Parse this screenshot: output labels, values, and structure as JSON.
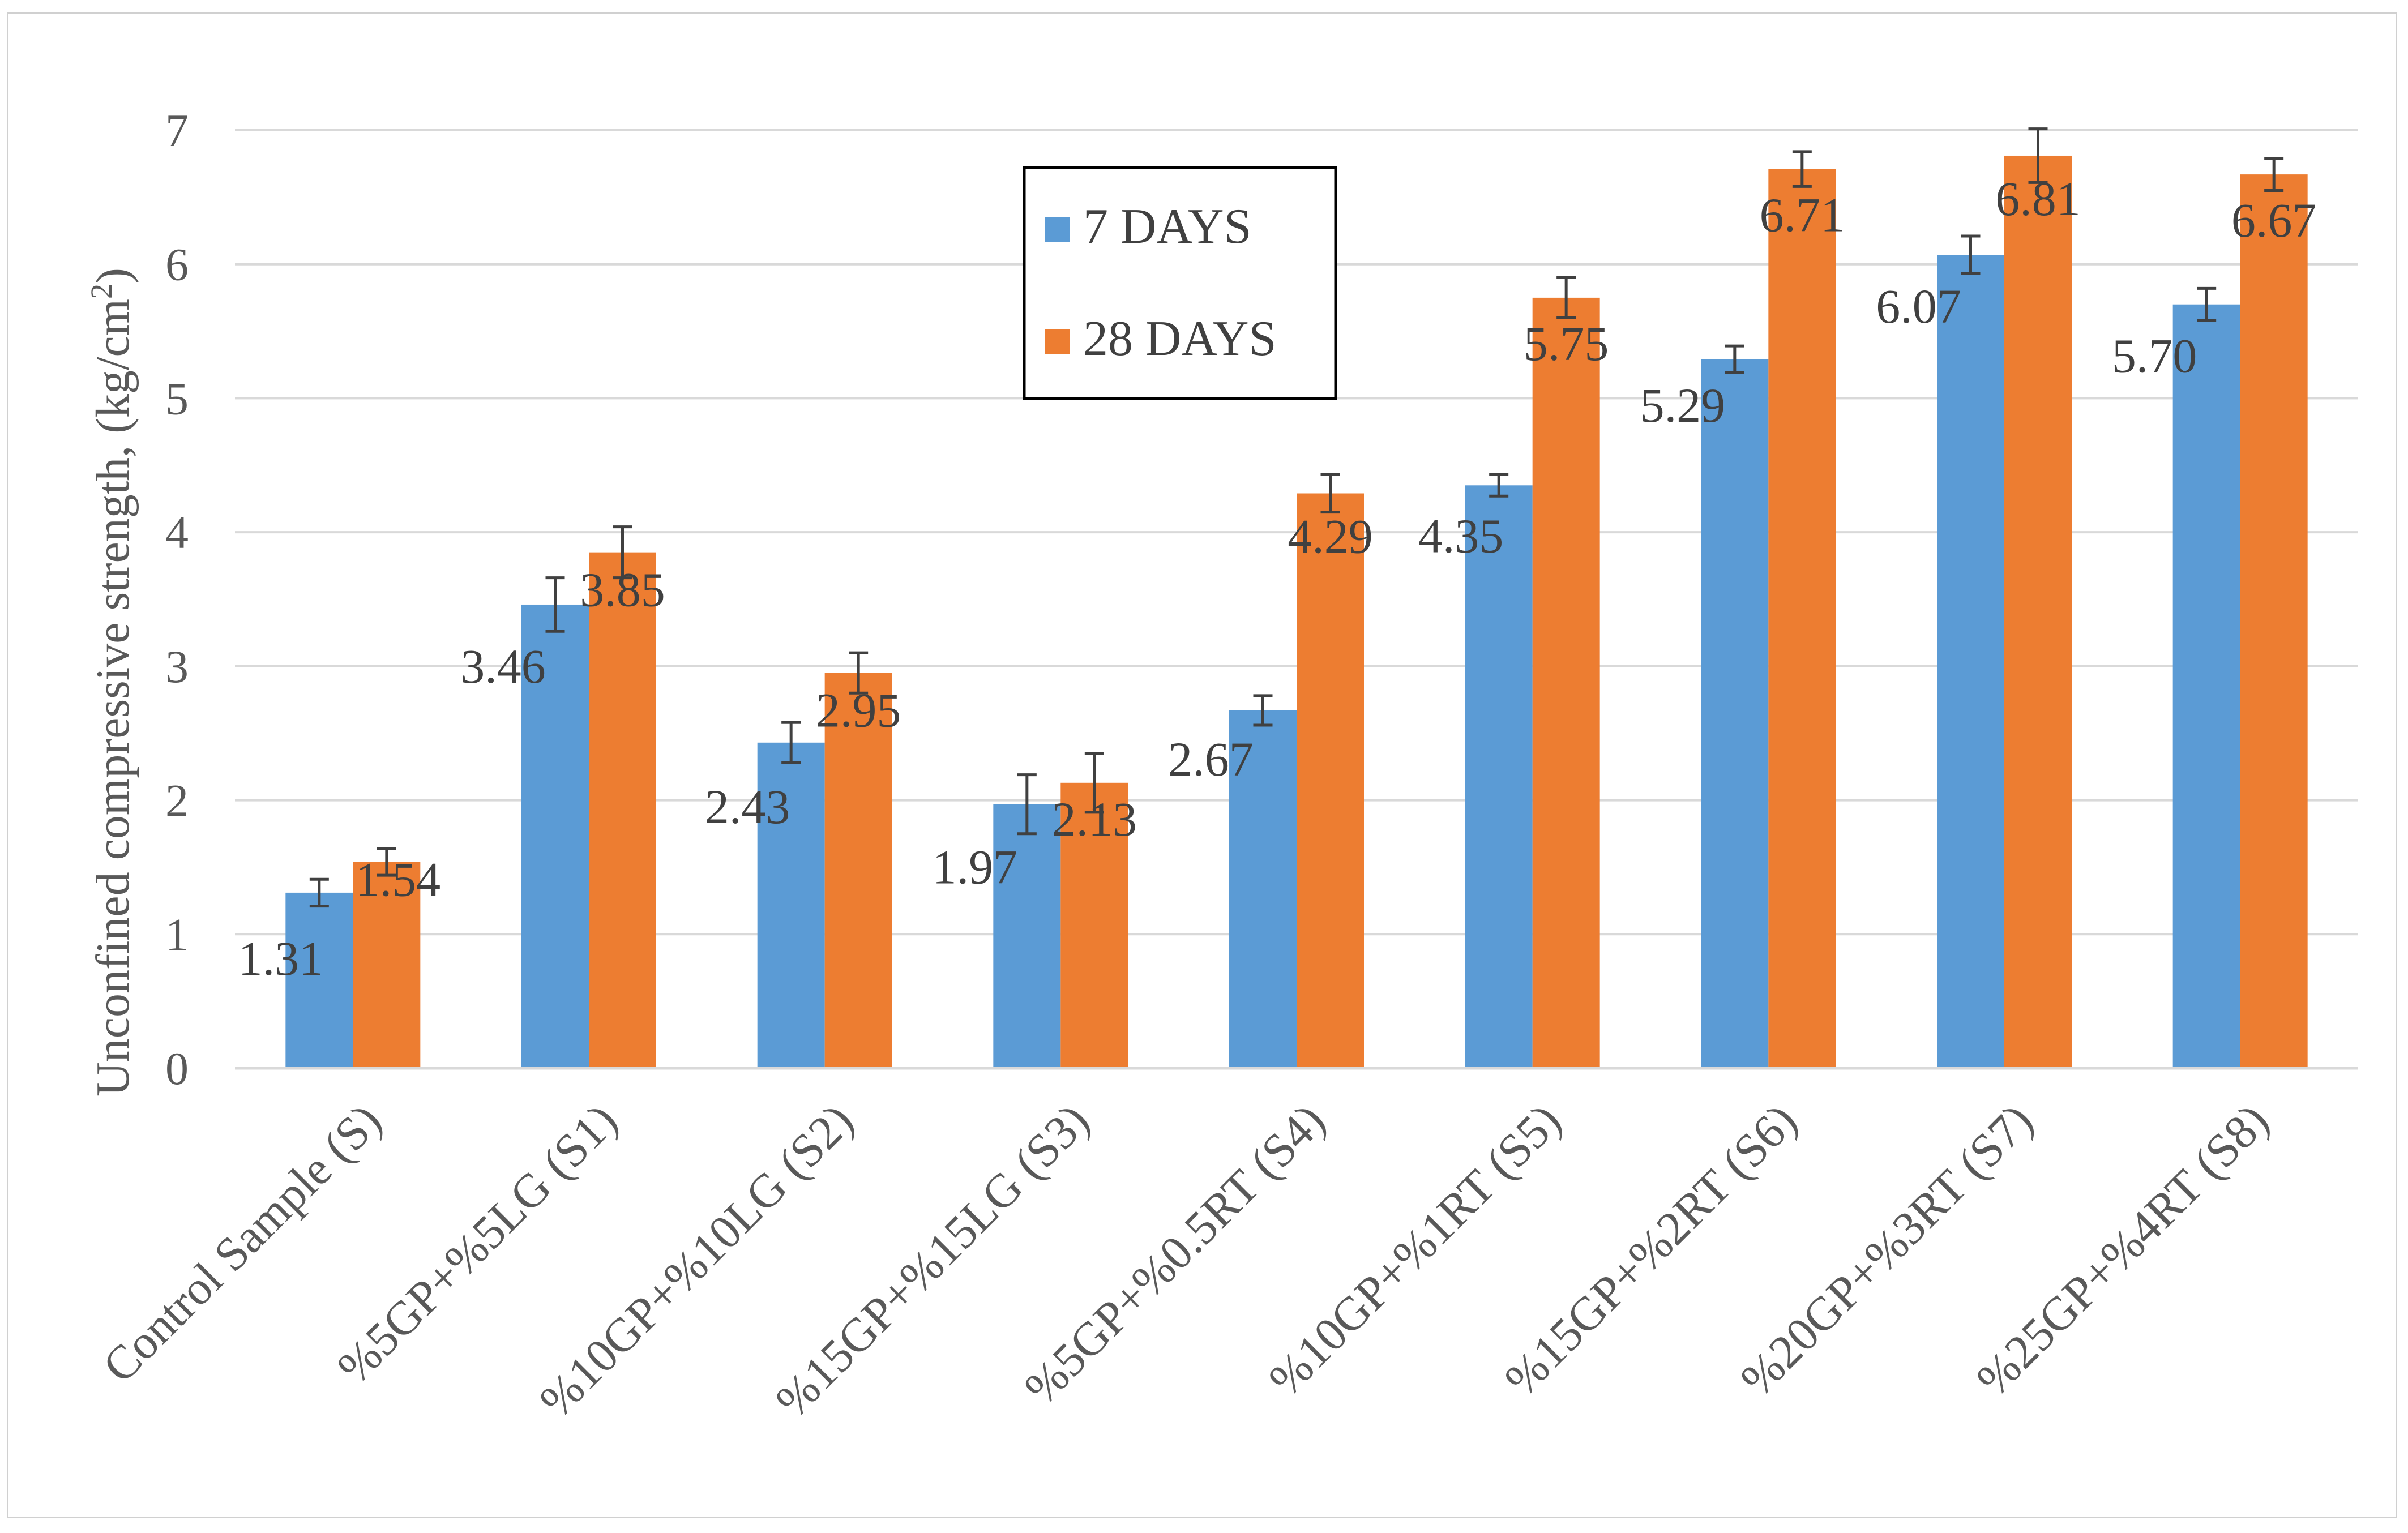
{
  "chart_data": {
    "type": "bar",
    "title": "",
    "xlabel": "",
    "ylabel": "Unconfined compressive strength, (kg/cm",
    "ylabel_superscript": "2",
    "ylabel_suffix": ")",
    "ylim": [
      0,
      7
    ],
    "yticks": [
      "0",
      "1",
      "2",
      "3",
      "4",
      "5",
      "6",
      "7"
    ],
    "grid": true,
    "legend_position": "top-center",
    "categories": [
      "Control Sample (S)",
      "%5GP+%5LG (S1)",
      "%10GP+%10LG (S2)",
      "%15GP+%15LG (S3)",
      "%5GP+%0.5RT (S4)",
      "%10GP+%1RT (S5)",
      "%15GP+%2RT (S6)",
      "%20GP+%3RT (S7)",
      "%25GP+%4RT (S8)"
    ],
    "series": [
      {
        "name": "7 DAYS",
        "color": "#5B9BD5",
        "values": [
          1.31,
          3.46,
          2.43,
          1.97,
          2.67,
          4.35,
          5.29,
          6.07,
          5.7
        ],
        "labels": [
          "1.31",
          "3.46",
          "2.43",
          "1.97",
          "2.67",
          "4.35",
          "5.29",
          "6.07",
          "5.70"
        ],
        "errors": [
          0.1,
          0.2,
          0.15,
          0.22,
          0.11,
          0.08,
          0.1,
          0.14,
          0.12
        ]
      },
      {
        "name": "28 DAYS",
        "color": "#ED7D31",
        "values": [
          1.54,
          3.85,
          2.95,
          2.13,
          4.29,
          5.75,
          6.71,
          6.81,
          6.67
        ],
        "labels": [
          "1.54",
          "3.85",
          "2.95",
          "2.13",
          "4.29",
          "5.75",
          "6.71",
          "6.81",
          "6.67"
        ],
        "errors": [
          0.1,
          0.19,
          0.15,
          0.22,
          0.14,
          0.15,
          0.13,
          0.2,
          0.12
        ]
      }
    ]
  }
}
